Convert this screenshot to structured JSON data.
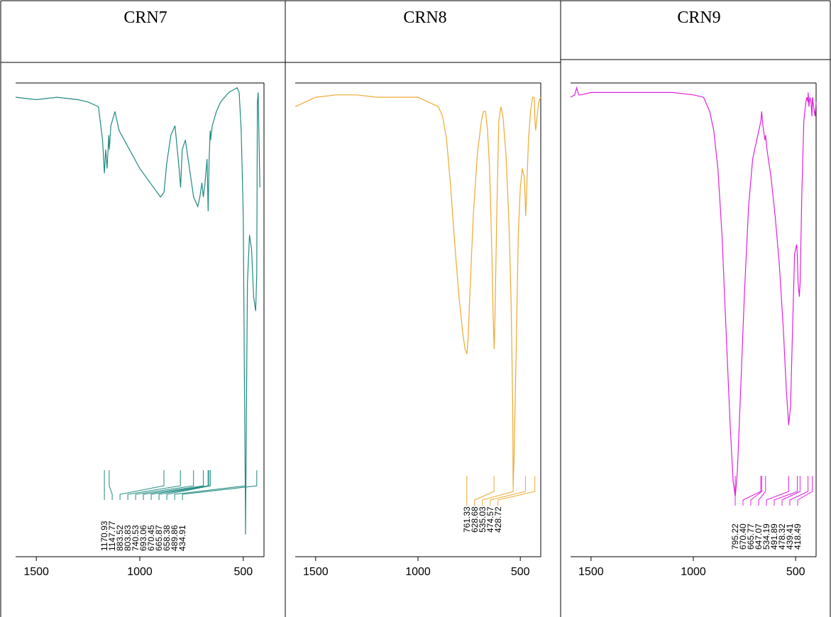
{
  "chart_data": [
    {
      "type": "line",
      "title": "CRN7",
      "color": "#1f8a82",
      "x_ticks": [
        "1500",
        "1000",
        "500"
      ],
      "x_tick_values": [
        1500,
        1000,
        500
      ],
      "xlim": [
        1600,
        400
      ],
      "ylim": [
        0,
        100
      ],
      "reversed_x": true,
      "series": [
        {
          "x": [
            1600,
            1500,
            1400,
            1300,
            1250,
            1200,
            1180,
            1171,
            1165,
            1158,
            1150,
            1147,
            1140,
            1120,
            1100,
            1050,
            1000,
            950,
            900,
            883,
            870,
            850,
            830,
            810,
            803,
            795,
            780,
            760,
            740,
            720,
            710,
            700,
            693,
            685,
            675,
            670,
            665,
            660,
            658,
            650,
            630,
            610,
            590,
            570,
            550,
            530,
            520,
            510,
            500,
            495,
            490,
            489,
            485,
            480,
            470,
            460,
            450,
            440,
            435,
            432,
            428,
            420
          ],
          "y": [
            97,
            96.5,
            97,
            96.5,
            96,
            95,
            88,
            81,
            86,
            82,
            89,
            86,
            91,
            94,
            90,
            86,
            82,
            79,
            76,
            77,
            83,
            89,
            91,
            82,
            78,
            86,
            88,
            82,
            76,
            74,
            76,
            79,
            76,
            79,
            84,
            73,
            84,
            90,
            88,
            91,
            94,
            96,
            97,
            98,
            98.5,
            99,
            98,
            90,
            72,
            40,
            12,
            5,
            30,
            58,
            68,
            65,
            55,
            52,
            60,
            96,
            98,
            78
          ]
        }
      ],
      "peak_labels": [
        "1170.93",
        "1147.77",
        "883.52",
        "803.83",
        "740.53",
        "693.06",
        "670.45",
        "665.87",
        "658.38",
        "489.86",
        "434.91"
      ],
      "peak_positions": [
        1170.93,
        1147.77,
        883.52,
        803.83,
        740.53,
        693.06,
        670.45,
        665.87,
        658.38,
        489.86,
        434.91
      ]
    },
    {
      "type": "line",
      "title": "CRN8",
      "color": "#f0a830",
      "x_ticks": [
        "1500",
        "1000",
        "500"
      ],
      "x_tick_values": [
        1500,
        1000,
        500
      ],
      "xlim": [
        1600,
        400
      ],
      "ylim": [
        0,
        100
      ],
      "reversed_x": true,
      "series": [
        {
          "x": [
            1600,
            1550,
            1500,
            1400,
            1300,
            1200,
            1100,
            1000,
            950,
            900,
            880,
            860,
            840,
            820,
            800,
            780,
            770,
            761,
            755,
            745,
            730,
            710,
            690,
            680,
            670,
            660,
            650,
            640,
            632,
            628,
            624,
            615,
            605,
            595,
            585,
            570,
            555,
            545,
            537,
            535,
            530,
            520,
            510,
            500,
            490,
            480,
            476,
            474,
            470,
            460,
            450,
            440,
            432,
            428,
            425,
            420,
            410,
            400
          ],
          "y": [
            95,
            96,
            97,
            97.5,
            97.5,
            97,
            97,
            97,
            96,
            95,
            93,
            88,
            78,
            66,
            55,
            47,
            44,
            43,
            46,
            57,
            72,
            85,
            92,
            94,
            94,
            90,
            82,
            66,
            50,
            44,
            50,
            72,
            92,
            95,
            93,
            85,
            70,
            54,
            32,
            15,
            22,
            44,
            68,
            78,
            82,
            80,
            75,
            72,
            76,
            88,
            94,
            97,
            97,
            92,
            90,
            92,
            96,
            97
          ]
        }
      ],
      "peak_labels": [
        "761.33",
        "628.68",
        "535.03",
        "474.57",
        "428.72"
      ],
      "peak_positions": [
        761.33,
        628.68,
        535.03,
        474.57,
        428.72
      ]
    },
    {
      "type": "line",
      "title": "CRN9",
      "color": "#e020e0",
      "x_ticks": [
        "1500",
        "1000",
        "500"
      ],
      "x_tick_values": [
        1500,
        1000,
        500
      ],
      "xlim": [
        1600,
        400
      ],
      "ylim": [
        0,
        100
      ],
      "reversed_x": true,
      "series": [
        {
          "x": [
            1600,
            1580,
            1570,
            1560,
            1550,
            1500,
            1400,
            1300,
            1200,
            1100,
            1000,
            950,
            920,
            900,
            880,
            860,
            840,
            820,
            805,
            795,
            785,
            770,
            750,
            730,
            710,
            690,
            680,
            670,
            666,
            660,
            650,
            647,
            640,
            620,
            600,
            580,
            560,
            545,
            534,
            525,
            515,
            505,
            495,
            492,
            488,
            482,
            478,
            470,
            460,
            450,
            445,
            440,
            439,
            435,
            430,
            425,
            420,
            418,
            412,
            405,
            400
          ],
          "y": [
            97,
            97.5,
            99,
            97.5,
            97.5,
            98,
            98,
            98,
            98,
            98,
            97.5,
            97,
            94,
            90,
            82,
            68,
            48,
            28,
            16,
            13,
            18,
            34,
            56,
            74,
            84,
            88,
            90,
            92,
            94,
            91,
            88,
            89,
            86,
            80,
            72,
            62,
            48,
            35,
            28,
            32,
            48,
            64,
            66,
            64,
            58,
            55,
            58,
            76,
            92,
            96,
            97,
            96,
            98,
            95,
            97,
            96,
            93,
            97,
            95,
            93,
            96
          ]
        }
      ],
      "peak_labels": [
        "795.22",
        "670.40",
        "665.77",
        "647.07",
        "534.19",
        "491.89",
        "478.32",
        "439.41",
        "418.49"
      ],
      "peak_positions": [
        795.22,
        670.4,
        665.77,
        647.07,
        534.19,
        491.89,
        478.32,
        439.41,
        418.49
      ]
    }
  ]
}
